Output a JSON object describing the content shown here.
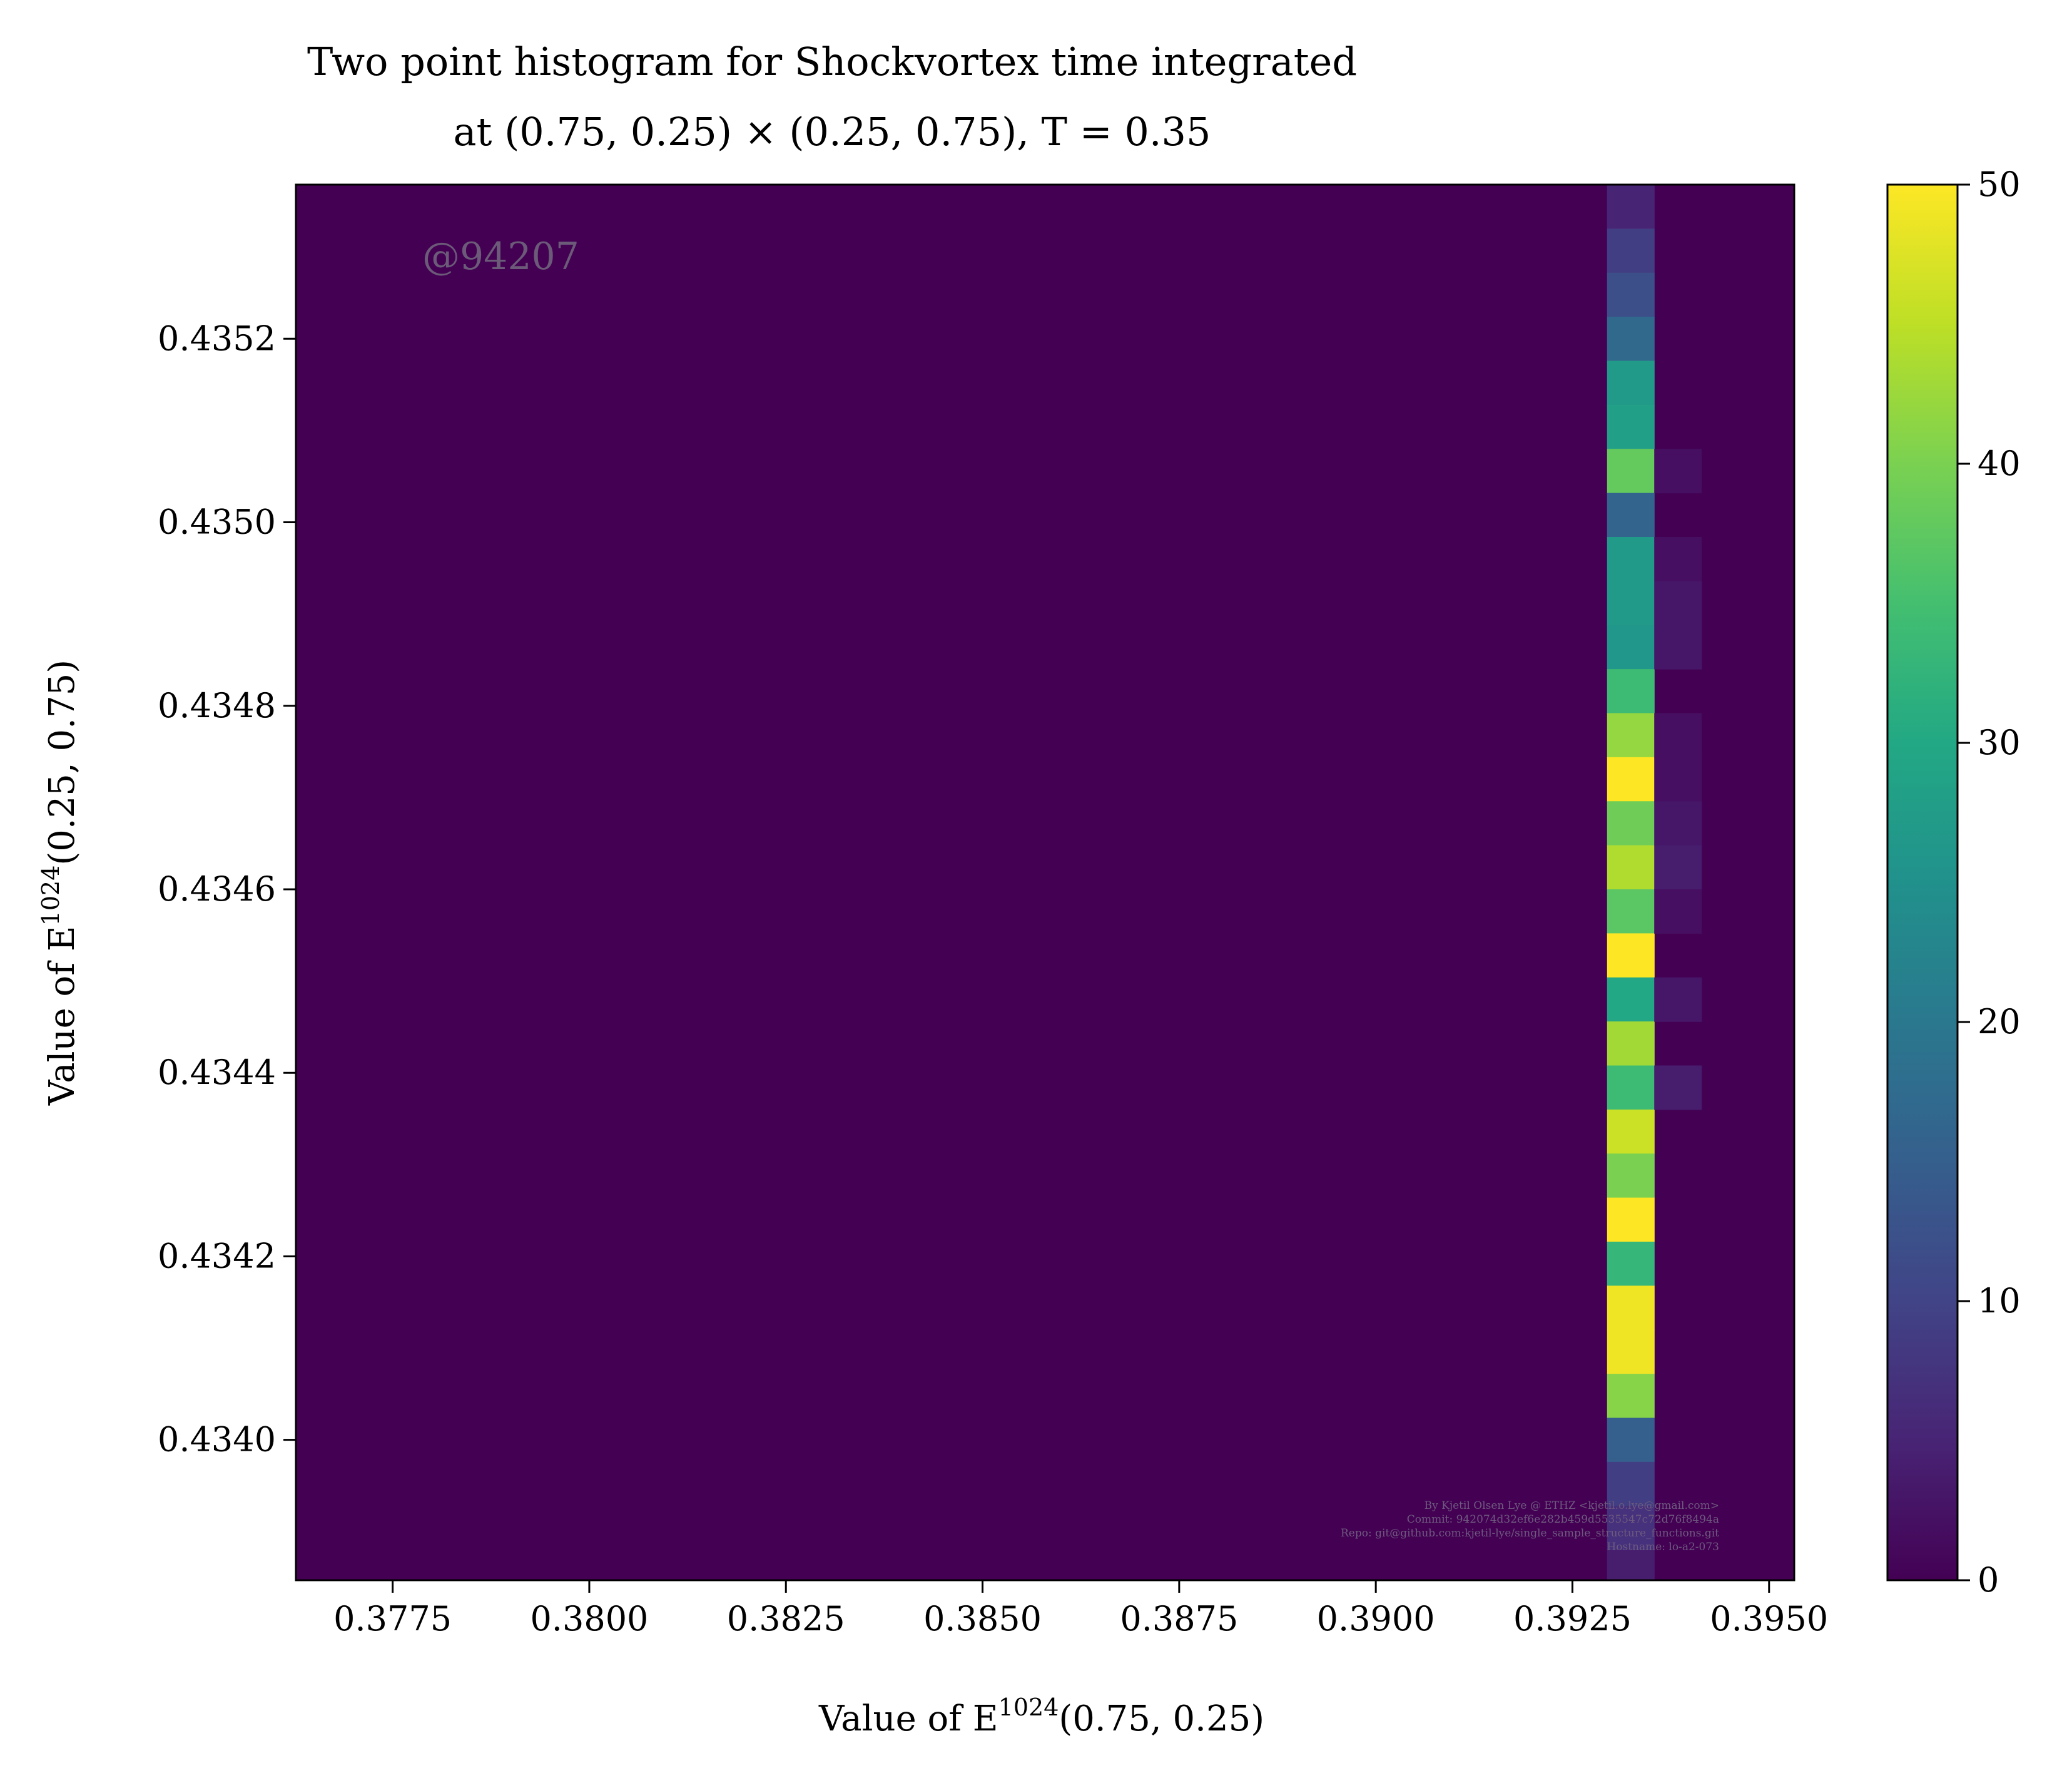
{
  "chart_data": {
    "type": "heatmap",
    "title_line1": "Two point histogram for Shockvortex time integrated",
    "title_line2": "at (0.75, 0.25) × (0.25, 0.75), T = 0.35",
    "xlabel_prefix": "Value of E",
    "xlabel_sup": "1024",
    "xlabel_suffix": "(0.75, 0.25)",
    "ylabel_prefix": "Value of E",
    "ylabel_sup": "1024",
    "ylabel_suffix": "(0.25, 0.75)",
    "xlim": [
      0.37627,
      0.39532
    ],
    "ylim": [
      0.433847,
      0.435368
    ],
    "x_ticks": [
      0.3775,
      0.38,
      0.3825,
      0.385,
      0.3875,
      0.39,
      0.3925,
      0.395
    ],
    "x_tick_labels": [
      "0.3775",
      "0.3800",
      "0.3825",
      "0.3850",
      "0.3875",
      "0.3900",
      "0.3925",
      "0.3950"
    ],
    "y_ticks": [
      0.434,
      0.4342,
      0.4344,
      0.4346,
      0.4348,
      0.435,
      0.4352
    ],
    "y_tick_labels": [
      "0.4340",
      "0.4342",
      "0.4344",
      "0.4346",
      "0.4348",
      "0.4350",
      "0.4352"
    ],
    "colorbar": {
      "vmin": 0,
      "vmax": 50,
      "ticks": [
        0,
        10,
        20,
        30,
        40,
        50
      ],
      "tick_labels": [
        "0",
        "10",
        "20",
        "30",
        "40",
        "50"
      ],
      "colormap": "viridis"
    },
    "background_color": "#440154",
    "bins": {
      "x_edges": [
        0.39294,
        0.39354,
        0.39414
      ],
      "y_edges_top_down": [
        0.435368,
        0.43532,
        0.435272,
        0.435224,
        0.435176,
        0.435128,
        0.43508,
        0.435032,
        0.434984,
        0.434936,
        0.434888,
        0.43484,
        0.434792,
        0.434744,
        0.434696,
        0.434648,
        0.4346,
        0.434552,
        0.434504,
        0.434456,
        0.434408,
        0.43436,
        0.434312,
        0.434264,
        0.434216,
        0.434168,
        0.43412,
        0.434072,
        0.434024,
        0.433976,
        0.433928,
        0.43388,
        0.433847
      ],
      "column1_counts_top_down": [
        5,
        9,
        12,
        17,
        27,
        28,
        38,
        16,
        27,
        27,
        26,
        34,
        42,
        50,
        39,
        44,
        37,
        50,
        30,
        43,
        34,
        46,
        40,
        50,
        33,
        49,
        49,
        41,
        15,
        9,
        7,
        4
      ],
      "column2_counts_top_down": [
        0,
        0,
        0,
        0,
        0,
        0,
        2,
        0,
        2,
        3,
        3,
        0,
        2,
        2,
        3,
        4,
        2,
        0,
        3,
        0,
        4,
        0,
        0,
        0,
        0,
        0,
        0,
        0,
        0,
        0,
        0,
        0
      ]
    },
    "annotations": {
      "watermark": "@94207",
      "credits": [
        "By Kjetil Olsen Lye @ ETHZ <kjetil.o.lye@gmail.com>",
        "Commit: 942074d32ef6e282b459d5535547c72d76f8494a",
        "Repo: git@github.com:kjetil-lye/single_sample_structure_functions.git",
        "Hostname: lo-a2-073"
      ]
    }
  }
}
